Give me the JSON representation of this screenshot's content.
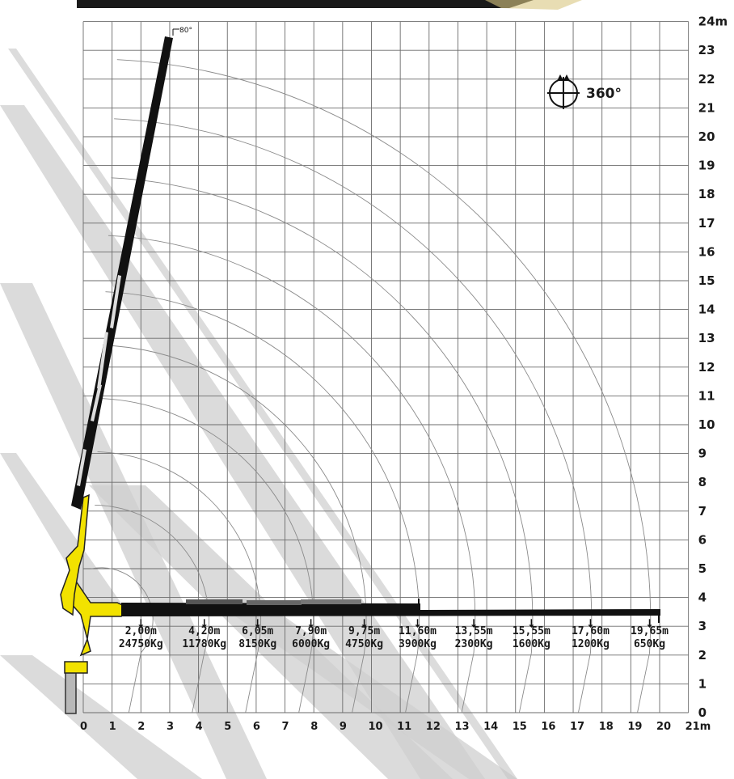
{
  "diagram": {
    "y_axis_labels": [
      "0",
      "1",
      "2",
      "3",
      "4",
      "5",
      "6",
      "7",
      "8",
      "9",
      "10",
      "11",
      "12",
      "13",
      "14",
      "15",
      "16",
      "17",
      "18",
      "19",
      "20",
      "21",
      "22",
      "23",
      "24m"
    ],
    "x_axis_labels": [
      "0",
      "1",
      "2",
      "3",
      "4",
      "5",
      "6",
      "7",
      "8",
      "9",
      "10",
      "11",
      "12",
      "13",
      "14",
      "15",
      "16",
      "17",
      "18",
      "19",
      "20",
      "21m"
    ],
    "boom_angle_label": "80°",
    "rotation": {
      "label": "360°",
      "icon": "rotation-360-icon"
    },
    "load_chart": [
      {
        "reach": "2,00m",
        "load": "24750Kg",
        "x": 2.0
      },
      {
        "reach": "4,20m",
        "load": "11780Kg",
        "x": 4.2
      },
      {
        "reach": "6,05m",
        "load": "8150Kg",
        "x": 6.05
      },
      {
        "reach": "7,90m",
        "load": "6000Kg",
        "x": 7.9
      },
      {
        "reach": "9,75m",
        "load": "4750Kg",
        "x": 9.75
      },
      {
        "reach": "11,60m",
        "load": "3900Kg",
        "x": 11.6
      },
      {
        "reach": "13,55m",
        "load": "2300Kg",
        "x": 13.55
      },
      {
        "reach": "15,55m",
        "load": "1600Kg",
        "x": 15.55
      },
      {
        "reach": "17,60m",
        "load": "1200Kg",
        "x": 17.6
      },
      {
        "reach": "19,65m",
        "load": "650Kg",
        "x": 19.65
      }
    ],
    "colors": {
      "boom": "#111111",
      "knuckle": "#f2e200",
      "grid": "#6b6b6b",
      "arc": "#8a8a8a",
      "band": "#cfcfcf"
    }
  }
}
